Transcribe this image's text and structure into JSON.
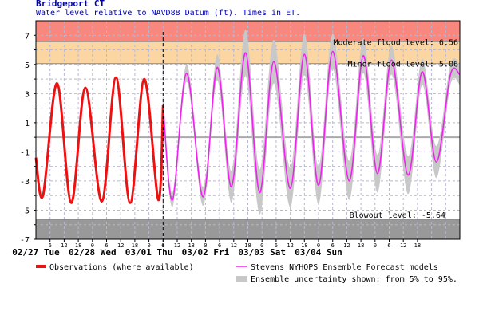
{
  "chart_data": {
    "type": "line",
    "title": "Bridgeport CT",
    "subtitle": "Water level relative to NAVD88 Datum (ft). Times in ET.",
    "xlabel": "",
    "ylabel": "",
    "ylim": [
      -7,
      8
    ],
    "xlim_hours": [
      0,
      180
    ],
    "y_ticks": [
      "7",
      "",
      "5",
      "",
      "3",
      "",
      "1",
      "",
      "-1",
      "",
      "-3",
      "",
      "-5",
      "",
      "-7"
    ],
    "x_hour_ticks": [
      "6",
      "12",
      "18",
      "0",
      "6",
      "12",
      "18",
      "0",
      "6",
      "12",
      "18",
      "0",
      "6",
      "12",
      "18",
      "0",
      "6",
      "12",
      "18",
      "0",
      "6",
      "12",
      "18",
      "0",
      "6",
      "12",
      "18"
    ],
    "day_labels": [
      "02/27 Tue",
      "02/28 Wed",
      "03/01 Thu",
      "03/02 Fri",
      "03/03 Sat",
      "03/04 Sun"
    ],
    "thresholds": [
      {
        "label": "Moderate flood level: 6.56",
        "value": 6.56,
        "color": "#f8877d"
      },
      {
        "label": "Minor flood level: 5.06",
        "value": 5.06,
        "color": "#fcd6a2"
      },
      {
        "label": "Blowout level: -5.64",
        "value": -5.64,
        "color": "#999999"
      }
    ],
    "now_hour": 54,
    "colors": {
      "observations": "#ee1111",
      "forecast": "#ee22ee",
      "uncertainty": "#c8c8c8",
      "grid": "#b8b8d0",
      "zero_line": "#aaaaaa"
    },
    "series": [
      {
        "name": "Observations (where available)",
        "points": [
          [
            0,
            -1.4
          ],
          [
            3,
            -4.0
          ],
          [
            9,
            3.7
          ],
          [
            15,
            -4.5
          ],
          [
            21,
            3.4
          ],
          [
            28,
            -4.4
          ],
          [
            34,
            4.1
          ],
          [
            40,
            -4.5
          ],
          [
            46,
            4.0
          ],
          [
            52,
            -4.3
          ],
          [
            54,
            2.2
          ]
        ]
      },
      {
        "name": "Stevens NYHOPS Ensemble Forecast models",
        "points": [
          [
            54,
            2.2
          ],
          [
            58,
            -4.3
          ],
          [
            64,
            4.4
          ],
          [
            71,
            -4.1
          ],
          [
            77,
            4.8
          ],
          [
            83,
            -3.4
          ],
          [
            89,
            5.8
          ],
          [
            95,
            -3.8
          ],
          [
            101,
            5.2
          ],
          [
            108,
            -3.5
          ],
          [
            114,
            5.7
          ],
          [
            120,
            -3.3
          ],
          [
            126,
            5.9
          ],
          [
            133,
            -3.0
          ],
          [
            139,
            5.6
          ],
          [
            145,
            -2.5
          ],
          [
            151,
            5.3
          ],
          [
            158,
            -2.6
          ],
          [
            164,
            4.5
          ],
          [
            170,
            -1.7
          ],
          [
            176,
            4.3
          ],
          [
            180,
            4.3
          ]
        ]
      }
    ],
    "uncertainty_points": [
      [
        54,
        2.6,
        2.0
      ],
      [
        58,
        -3.8,
        -4.8
      ],
      [
        64,
        5.0,
        3.8
      ],
      [
        71,
        -3.4,
        -4.7
      ],
      [
        77,
        5.7,
        3.9
      ],
      [
        83,
        -2.3,
        -4.5
      ],
      [
        89,
        7.4,
        4.2
      ],
      [
        95,
        -2.2,
        -5.3
      ],
      [
        101,
        6.7,
        3.7
      ],
      [
        108,
        -2.1,
        -4.8
      ],
      [
        114,
        7.1,
        4.3
      ],
      [
        120,
        -2.0,
        -4.6
      ],
      [
        126,
        7.1,
        4.7
      ],
      [
        133,
        -1.6,
        -4.3
      ],
      [
        139,
        6.8,
        4.4
      ],
      [
        145,
        -1.2,
        -3.8
      ],
      [
        151,
        6.3,
        4.3
      ],
      [
        158,
        -1.3,
        -3.9
      ],
      [
        164,
        5.4,
        3.6
      ],
      [
        170,
        -0.6,
        -2.8
      ],
      [
        176,
        5.0,
        3.6
      ],
      [
        180,
        5.0,
        3.6
      ]
    ],
    "legend": [
      {
        "label": "Observations (where available)"
      },
      {
        "label": "Stevens NYHOPS Ensemble Forecast models"
      },
      {
        "label": "Ensemble uncertainty shown: from 5% to 95%."
      }
    ]
  }
}
